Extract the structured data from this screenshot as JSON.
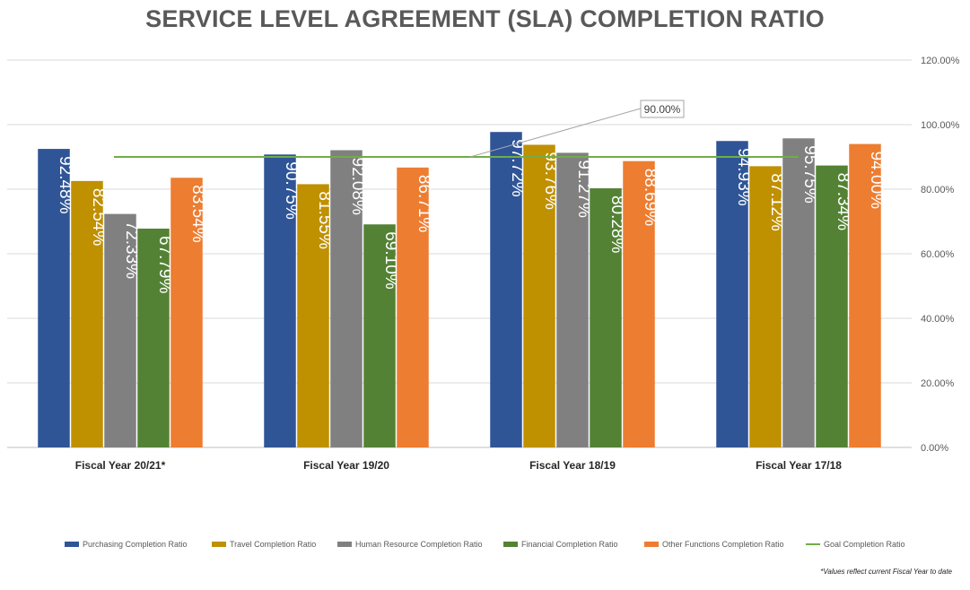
{
  "chart_data": {
    "type": "bar",
    "title": "SERVICE LEVEL AGREEMENT (SLA) COMPLETION RATIO",
    "categories": [
      "Fiscal Year 20/21*",
      "Fiscal Year 19/20",
      "Fiscal Year 18/19",
      "Fiscal Year 17/18"
    ],
    "series": [
      {
        "name": "Purchasing Completion Ratio",
        "color": "#2F5597",
        "values": [
          92.48,
          90.75,
          97.72,
          94.93
        ],
        "labels": [
          "92.48%",
          "90.75%",
          "97.72%",
          "94.93%"
        ]
      },
      {
        "name": "Travel Completion Ratio",
        "color": "#BF9000",
        "values": [
          82.54,
          81.55,
          93.76,
          87.12
        ],
        "labels": [
          "82.54%",
          "81.55%",
          "93.76%",
          "87.12%"
        ]
      },
      {
        "name": "Human Resource Completion Ratio",
        "color": "#808080",
        "values": [
          72.33,
          92.08,
          91.27,
          95.75
        ],
        "labels": [
          "72.33%",
          "92.08%",
          "91.27%",
          "95.75%"
        ]
      },
      {
        "name": "Financial Completion Ratio",
        "color": "#548235",
        "values": [
          67.79,
          69.1,
          80.28,
          87.34
        ],
        "labels": [
          "67.79%",
          "69.10%",
          "80.28%",
          "87.34%"
        ]
      },
      {
        "name": "Other Functions Completion Ratio",
        "color": "#ED7D31",
        "values": [
          83.54,
          86.71,
          88.69,
          94.0
        ],
        "labels": [
          "83.54%",
          "86.71%",
          "88.69%",
          "94.00%"
        ]
      }
    ],
    "goal": {
      "name": "Goal Completion Ratio",
      "color": "#70AD47",
      "value": 90.0,
      "label": "90.00%"
    },
    "y_axis": {
      "position": "right",
      "ylim": [
        0,
        120
      ],
      "ticks": [
        0,
        20,
        40,
        60,
        80,
        100,
        120
      ],
      "tick_labels": [
        "0.00%",
        "20.00%",
        "40.00%",
        "60.00%",
        "80.00%",
        "100.00%",
        "120.00%"
      ]
    },
    "grid": true,
    "legend_placement": "bottom",
    "footnote": "*Values reflect current Fiscal Year to date"
  }
}
